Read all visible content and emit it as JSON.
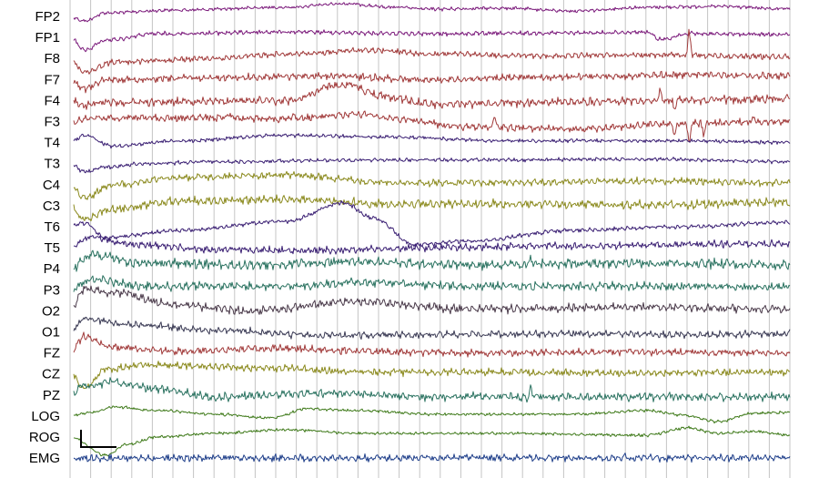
{
  "chart_data": {
    "type": "line",
    "channels": [
      {
        "name": "FP2",
        "color": "#7b1a7b",
        "shape": [
          [
            0,
            0
          ],
          [
            0.02,
            5
          ],
          [
            0.05,
            -4
          ],
          [
            0.15,
            -7
          ],
          [
            0.3,
            -10
          ],
          [
            0.38,
            -14
          ],
          [
            0.45,
            -10
          ],
          [
            0.5,
            -8
          ],
          [
            0.6,
            -9
          ],
          [
            0.7,
            -6
          ],
          [
            0.8,
            -10
          ],
          [
            0.9,
            -11
          ],
          [
            1,
            -8
          ]
        ],
        "noise": 1.2,
        "spikes": []
      },
      {
        "name": "FP1",
        "color": "#7b1a7b",
        "shape": [
          [
            0,
            0
          ],
          [
            0.02,
            14
          ],
          [
            0.05,
            3
          ],
          [
            0.12,
            -4
          ],
          [
            0.3,
            -6
          ],
          [
            0.5,
            -4
          ],
          [
            0.72,
            -5
          ],
          [
            0.8,
            -6
          ],
          [
            0.82,
            2
          ],
          [
            0.86,
            -4
          ],
          [
            1,
            -3
          ]
        ],
        "noise": 1.5,
        "spikes": []
      },
      {
        "name": "F8",
        "color": "#a13a3a",
        "shape": [
          [
            0,
            0
          ],
          [
            0.02,
            15
          ],
          [
            0.06,
            4
          ],
          [
            0.2,
            0
          ],
          [
            0.3,
            -5
          ],
          [
            0.42,
            -9
          ],
          [
            0.5,
            -5
          ],
          [
            0.65,
            -3
          ],
          [
            0.8,
            -4
          ],
          [
            1,
            -2
          ]
        ],
        "noise": 2,
        "spikes": [
          [
            0.86,
            -28
          ]
        ]
      },
      {
        "name": "F7",
        "color": "#a13a3a",
        "shape": [
          [
            0,
            0
          ],
          [
            0.02,
            10
          ],
          [
            0.05,
            0
          ],
          [
            0.2,
            -2
          ],
          [
            0.35,
            -4
          ],
          [
            0.5,
            0
          ],
          [
            0.7,
            -3
          ],
          [
            0.85,
            -5
          ],
          [
            1,
            -4
          ]
        ],
        "noise": 2.5,
        "spikes": []
      },
      {
        "name": "F4",
        "color": "#a13a3a",
        "shape": [
          [
            0,
            0
          ],
          [
            0.02,
            6
          ],
          [
            0.05,
            2
          ],
          [
            0.3,
            0
          ],
          [
            0.38,
            -18
          ],
          [
            0.44,
            -4
          ],
          [
            0.5,
            4
          ],
          [
            0.65,
            2
          ],
          [
            0.85,
            0
          ],
          [
            1,
            -2
          ]
        ],
        "noise": 3,
        "spikes": [
          [
            0.82,
            -10
          ],
          [
            0.84,
            12
          ]
        ]
      },
      {
        "name": "F3",
        "color": "#a13a3a",
        "shape": [
          [
            0,
            0
          ],
          [
            0.03,
            -4
          ],
          [
            0.2,
            -4
          ],
          [
            0.3,
            -3
          ],
          [
            0.4,
            -8
          ],
          [
            0.46,
            -2
          ],
          [
            0.55,
            6
          ],
          [
            0.7,
            8
          ],
          [
            0.85,
            2
          ],
          [
            1,
            0
          ]
        ],
        "noise": 2.5,
        "spikes": [
          [
            0.22,
            -6
          ],
          [
            0.31,
            -8
          ],
          [
            0.59,
            -14
          ],
          [
            0.84,
            15
          ],
          [
            0.86,
            25
          ],
          [
            0.88,
            12
          ],
          [
            0.95,
            -7
          ]
        ]
      },
      {
        "name": "T4",
        "color": "#3a1f73",
        "shape": [
          [
            0,
            0
          ],
          [
            0.02,
            -8
          ],
          [
            0.06,
            4
          ],
          [
            0.15,
            -2
          ],
          [
            0.3,
            -8
          ],
          [
            0.45,
            -6
          ],
          [
            0.6,
            -2
          ],
          [
            0.85,
            -2
          ],
          [
            1,
            0
          ]
        ],
        "noise": 1.3,
        "spikes": []
      },
      {
        "name": "T3",
        "color": "#3a1f73",
        "shape": [
          [
            0,
            0
          ],
          [
            0.02,
            9
          ],
          [
            0.05,
            4
          ],
          [
            0.1,
            0
          ],
          [
            0.2,
            -2
          ],
          [
            0.4,
            -4
          ],
          [
            0.6,
            -4
          ],
          [
            0.8,
            -5
          ],
          [
            1,
            -2
          ]
        ],
        "noise": 1.3,
        "spikes": []
      },
      {
        "name": "C4",
        "color": "#8b8a1e",
        "shape": [
          [
            0,
            0
          ],
          [
            0.02,
            14
          ],
          [
            0.06,
            0
          ],
          [
            0.15,
            -8
          ],
          [
            0.3,
            -10
          ],
          [
            0.45,
            -2
          ],
          [
            0.6,
            -2
          ],
          [
            0.8,
            -4
          ],
          [
            1,
            -2
          ]
        ],
        "noise": 2.5,
        "spikes": []
      },
      {
        "name": "C3",
        "color": "#8b8a1e",
        "shape": [
          [
            0,
            0
          ],
          [
            0.02,
            15
          ],
          [
            0.06,
            4
          ],
          [
            0.15,
            -5
          ],
          [
            0.3,
            -7
          ],
          [
            0.45,
            -2
          ],
          [
            0.6,
            -2
          ],
          [
            0.85,
            -1
          ],
          [
            1,
            -4
          ]
        ],
        "noise": 3,
        "spikes": []
      },
      {
        "name": "T6",
        "color": "#3a1f73",
        "shape": [
          [
            0,
            0
          ],
          [
            0.02,
            -4
          ],
          [
            0.05,
            12
          ],
          [
            0.15,
            4
          ],
          [
            0.3,
            -6
          ],
          [
            0.38,
            -26
          ],
          [
            0.42,
            -10
          ],
          [
            0.48,
            20
          ],
          [
            0.55,
            16
          ],
          [
            0.7,
            4
          ],
          [
            0.85,
            0
          ],
          [
            1,
            -5
          ]
        ],
        "noise": 1.5,
        "spikes": []
      },
      {
        "name": "T5",
        "color": "#3a1f73",
        "shape": [
          [
            0,
            0
          ],
          [
            0.03,
            -12
          ],
          [
            0.08,
            -4
          ],
          [
            0.2,
            2
          ],
          [
            0.35,
            3
          ],
          [
            0.5,
            0
          ],
          [
            0.7,
            -2
          ],
          [
            0.9,
            -4
          ],
          [
            1,
            -4
          ]
        ],
        "noise": 2.5,
        "spikes": []
      },
      {
        "name": "P4",
        "color": "#2a7260",
        "shape": [
          [
            0,
            0
          ],
          [
            0.03,
            -16
          ],
          [
            0.1,
            -6
          ],
          [
            0.25,
            -4
          ],
          [
            0.4,
            -8
          ],
          [
            0.55,
            -4
          ],
          [
            0.8,
            -6
          ],
          [
            1,
            -4
          ]
        ],
        "noise": 3.5,
        "spikes": [
          [
            0.64,
            -8
          ]
        ]
      },
      {
        "name": "P3",
        "color": "#2a7260",
        "shape": [
          [
            0,
            0
          ],
          [
            0.03,
            -12
          ],
          [
            0.1,
            -4
          ],
          [
            0.3,
            -4
          ],
          [
            0.4,
            -8
          ],
          [
            0.55,
            -4
          ],
          [
            0.8,
            -4
          ],
          [
            1,
            -3
          ]
        ],
        "noise": 3,
        "spikes": []
      },
      {
        "name": "O2",
        "color": "#4a3a4a",
        "shape": [
          [
            0,
            0
          ],
          [
            0.02,
            -24
          ],
          [
            0.06,
            -20
          ],
          [
            0.15,
            -6
          ],
          [
            0.25,
            0
          ],
          [
            0.4,
            -10
          ],
          [
            0.55,
            -2
          ],
          [
            0.8,
            -4
          ],
          [
            1,
            -2
          ]
        ],
        "noise": 3,
        "spikes": []
      },
      {
        "name": "O1",
        "color": "#3a3a54",
        "shape": [
          [
            0,
            0
          ],
          [
            0.02,
            -14
          ],
          [
            0.08,
            -8
          ],
          [
            0.2,
            -2
          ],
          [
            0.35,
            4
          ],
          [
            0.5,
            3
          ],
          [
            0.7,
            2
          ],
          [
            0.85,
            3
          ],
          [
            1,
            2
          ]
        ],
        "noise": 2.5,
        "spikes": []
      },
      {
        "name": "FZ",
        "color": "#a13a3a",
        "shape": [
          [
            0,
            0
          ],
          [
            0.02,
            -18
          ],
          [
            0.06,
            -6
          ],
          [
            0.15,
            -2
          ],
          [
            0.3,
            -5
          ],
          [
            0.4,
            -2
          ],
          [
            0.55,
            0
          ],
          [
            0.8,
            -1
          ],
          [
            1,
            0
          ]
        ],
        "noise": 2.5,
        "spikes": []
      },
      {
        "name": "CZ",
        "color": "#8b8a1e",
        "shape": [
          [
            0,
            0
          ],
          [
            0.02,
            16
          ],
          [
            0.05,
            -5
          ],
          [
            0.1,
            -10
          ],
          [
            0.3,
            -6
          ],
          [
            0.4,
            -2
          ],
          [
            0.6,
            -2
          ],
          [
            0.8,
            -1
          ],
          [
            1,
            -2
          ]
        ],
        "noise": 2.5,
        "spikes": []
      },
      {
        "name": "PZ",
        "color": "#2a7260",
        "shape": [
          [
            0,
            0
          ],
          [
            0.02,
            -10
          ],
          [
            0.06,
            -14
          ],
          [
            0.12,
            -6
          ],
          [
            0.2,
            2
          ],
          [
            0.35,
            -2
          ],
          [
            0.5,
            2
          ],
          [
            0.8,
            2
          ],
          [
            1,
            2
          ]
        ],
        "noise": 3,
        "spikes": [
          [
            0.64,
            -10
          ]
        ]
      },
      {
        "name": "LOG",
        "color": "#3f7a1a",
        "shape": [
          [
            0,
            0
          ],
          [
            0.03,
            -4
          ],
          [
            0.06,
            -10
          ],
          [
            0.12,
            -6
          ],
          [
            0.2,
            -2
          ],
          [
            0.28,
            2
          ],
          [
            0.33,
            -8
          ],
          [
            0.4,
            -6
          ],
          [
            0.5,
            -2
          ],
          [
            0.6,
            -2
          ],
          [
            0.7,
            -2
          ],
          [
            0.8,
            -6
          ],
          [
            0.85,
            -1
          ],
          [
            0.9,
            6
          ],
          [
            0.95,
            -3
          ],
          [
            1,
            -4
          ]
        ],
        "noise": 1,
        "spikes": []
      },
      {
        "name": "ROG",
        "color": "#3f7a1a",
        "shape": [
          [
            0,
            0
          ],
          [
            0.05,
            20
          ],
          [
            0.08,
            8
          ],
          [
            0.12,
            0
          ],
          [
            0.2,
            -4
          ],
          [
            0.3,
            -8
          ],
          [
            0.4,
            -4
          ],
          [
            0.6,
            -4
          ],
          [
            0.8,
            -2
          ],
          [
            0.86,
            -10
          ],
          [
            0.9,
            -4
          ],
          [
            0.95,
            -6
          ],
          [
            1,
            -2
          ]
        ],
        "noise": 1,
        "spikes": []
      },
      {
        "name": "EMG",
        "color": "#1f3f8a",
        "shape": [
          [
            0,
            0
          ],
          [
            1,
            0
          ]
        ],
        "noise": 2.5,
        "spikes": [
          [
            0.77,
            -3
          ]
        ]
      }
    ],
    "time_divisions": 35,
    "grid": true,
    "scale_bar": true
  }
}
